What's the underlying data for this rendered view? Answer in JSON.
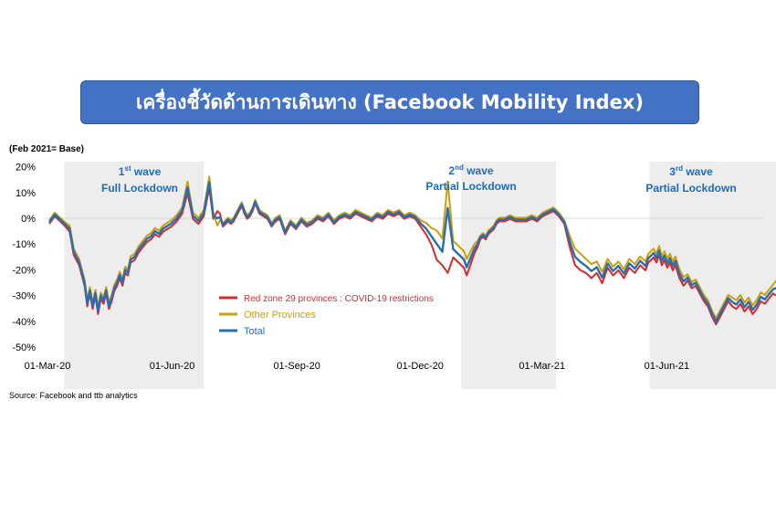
{
  "title": "เครื่องชี้วัดด้านการเดินทาง (Facebook Mobility Index)",
  "base_note": "(Feb 2021= Base)",
  "source": "Source: Facebook and ttb analytics",
  "colors": {
    "red": "#d42b2b",
    "other": "#c9a00f",
    "total": "#2a6db0",
    "shade": "#ededed",
    "wave_text": "#1f6bb5"
  },
  "waves": [
    {
      "ord": "1",
      "sup": "st",
      "word": " wave",
      "sub": "Full Lockdown"
    },
    {
      "ord": "2",
      "sup": "nd",
      "word": " wave",
      "sub": "Partial Lockdown"
    },
    {
      "ord": "3",
      "sup": "rd",
      "word": " wave",
      "sub": "Partial Lockdown"
    }
  ],
  "chart_data": {
    "type": "line",
    "x_ticks": [
      "01-Mar-20",
      "01-Jun-20",
      "01-Sep-20",
      "01-Dec-20",
      "01-Mar-21",
      "01-Jun-21"
    ],
    "y_ticks": [
      "20%",
      "10%",
      "0%",
      "-10%",
      "-20%",
      "-30%",
      "-40%",
      "-50%"
    ],
    "ylim": [
      -50,
      20
    ],
    "shaded_periods": [
      {
        "start_day": 11,
        "end_day": 114
      },
      {
        "start_day": 304,
        "end_day": 374
      },
      {
        "start_day": 443,
        "end_day": 570
      }
    ],
    "x_days": [
      0,
      4,
      8,
      12,
      15,
      18,
      22,
      26,
      28,
      30,
      32,
      34,
      36,
      38,
      40,
      42,
      44,
      46,
      48,
      50,
      52,
      54,
      56,
      58,
      60,
      63,
      66,
      69,
      72,
      75,
      78,
      81,
      84,
      87,
      90,
      94,
      98,
      102,
      106,
      110,
      114,
      118,
      121,
      124,
      126,
      128,
      130,
      132,
      134,
      136,
      138,
      140,
      142,
      144,
      146,
      148,
      150,
      152,
      155,
      158,
      161,
      164,
      167,
      170,
      174,
      178,
      182,
      186,
      190,
      194,
      198,
      202,
      206,
      210,
      214,
      218,
      222,
      226,
      230,
      234,
      238,
      242,
      246,
      250,
      254,
      258,
      262,
      266,
      270,
      274,
      278,
      282,
      286,
      290,
      294,
      298,
      302,
      306,
      308,
      310,
      312,
      314,
      316,
      318,
      320,
      322,
      324,
      326,
      328,
      330,
      332,
      336,
      340,
      344,
      348,
      352,
      356,
      360,
      364,
      368,
      372,
      376,
      380,
      384,
      388,
      392,
      396,
      400,
      404,
      408,
      412,
      416,
      420,
      424,
      428,
      432,
      436,
      440,
      442,
      444,
      446,
      448,
      450,
      452,
      454,
      456,
      458,
      460,
      462,
      465,
      468,
      471,
      474,
      477,
      480,
      483,
      486,
      489,
      492,
      495,
      498,
      501,
      504,
      507,
      510,
      513,
      516,
      519,
      522,
      525,
      528,
      531,
      534,
      537,
      540,
      543,
      546,
      549,
      552,
      555,
      558,
      561,
      564,
      567,
      570
    ],
    "series": [
      {
        "name": "Red zone  29 provinces : COVID-19  restrictions",
        "values": [
          -2,
          1,
          -1,
          -3,
          -5,
          -14,
          -18,
          -26,
          -34,
          -29,
          -35,
          -30,
          -37,
          -31,
          -33,
          -29,
          -35,
          -32,
          -28,
          -26,
          -23,
          -26,
          -21,
          -22,
          -17,
          -16,
          -13,
          -11,
          -9,
          -8,
          -6,
          -7,
          -5,
          -4,
          -3,
          -1,
          2,
          10,
          0,
          -2,
          1,
          12,
          0,
          3,
          2,
          -3,
          -2,
          -1,
          -2,
          -1,
          1,
          3,
          5,
          2,
          0,
          1,
          3,
          6,
          2,
          1,
          0,
          -3,
          -1,
          0,
          -6,
          -2,
          -4,
          -1,
          -3,
          -2,
          0,
          -1,
          1,
          -2,
          0,
          1,
          0,
          2,
          1,
          0,
          -1,
          1,
          0,
          2,
          1,
          2,
          0,
          1,
          0,
          -3,
          -6,
          -10,
          -16,
          -18,
          -21,
          -15,
          -17,
          -19,
          -22,
          -19,
          -16,
          -13,
          -11,
          -8,
          -7,
          -8,
          -6,
          -5,
          -4,
          -2,
          -1,
          -1,
          0,
          -1,
          -1,
          -1,
          0,
          -1,
          1,
          2,
          3,
          1,
          -2,
          -11,
          -18,
          -20,
          -21,
          -23,
          -21,
          -25,
          -19,
          -22,
          -20,
          -23,
          -19,
          -21,
          -18,
          -20,
          -17,
          -16,
          -15,
          -17,
          -14,
          -18,
          -16,
          -19,
          -17,
          -20,
          -18,
          -23,
          -26,
          -24,
          -27,
          -26,
          -29,
          -32,
          -34,
          -38,
          -41,
          -38,
          -35,
          -32,
          -34,
          -35,
          -33,
          -36,
          -34,
          -37,
          -35,
          -32,
          -33,
          -31,
          -29,
          -30,
          -32,
          -34
        ]
      },
      {
        "name": "Other Provinces",
        "values": [
          -1,
          2,
          0,
          -2,
          -3,
          -12,
          -16,
          -24,
          -32,
          -27,
          -33,
          -28,
          -35,
          -29,
          -31,
          -27,
          -33,
          -30,
          -26,
          -24,
          -21,
          -24,
          -19,
          -20,
          -15,
          -14,
          -11,
          -9,
          -7,
          -6,
          -4,
          -5,
          -3,
          -2,
          -1,
          1,
          4,
          14,
          2,
          0,
          3,
          16,
          2,
          -3,
          -1,
          -2,
          -1,
          0,
          -1,
          0,
          2,
          4,
          6,
          3,
          1,
          2,
          4,
          7,
          3,
          2,
          1,
          -2,
          0,
          1,
          -5,
          -1,
          -3,
          0,
          -2,
          -1,
          1,
          0,
          2,
          -1,
          1,
          2,
          1,
          3,
          2,
          1,
          0,
          2,
          1,
          3,
          2,
          3,
          1,
          2,
          1,
          -1,
          -2,
          -4,
          -5,
          -8,
          14,
          -9,
          -11,
          -13,
          -16,
          -14,
          -12,
          -10,
          -9,
          -7,
          -6,
          -7,
          -5,
          -4,
          -3,
          -1,
          0,
          0,
          1,
          0,
          0,
          0,
          1,
          0,
          2,
          3,
          4,
          2,
          -1,
          -7,
          -12,
          -14,
          -16,
          -18,
          -17,
          -21,
          -16,
          -19,
          -17,
          -20,
          -16,
          -18,
          -15,
          -17,
          -14,
          -13,
          -12,
          -14,
          -11,
          -15,
          -13,
          -16,
          -14,
          -17,
          -15,
          -20,
          -23,
          -22,
          -25,
          -24,
          -27,
          -30,
          -32,
          -36,
          -39,
          -36,
          -33,
          -30,
          -31,
          -32,
          -30,
          -33,
          -31,
          -34,
          -32,
          -29,
          -30,
          -28,
          -26,
          -24,
          -27,
          -28
        ]
      },
      {
        "name": "Total",
        "values": [
          -1.5,
          1.5,
          -0.5,
          -2.5,
          -4,
          -13,
          -17,
          -25,
          -33,
          -28,
          -34,
          -29,
          -36,
          -30,
          -32,
          -28,
          -34,
          -31,
          -27,
          -25,
          -22,
          -25,
          -20,
          -21,
          -16,
          -15,
          -12,
          -10,
          -8,
          -7,
          -5,
          -6,
          -4,
          -3,
          -2,
          0,
          3,
          12,
          1,
          -1,
          2,
          14,
          1,
          0,
          0.5,
          -2.5,
          -1.5,
          -0.5,
          -1.5,
          -0.5,
          1.5,
          3.5,
          5.5,
          2.5,
          0.5,
          1.5,
          3.5,
          6.5,
          2.5,
          1.5,
          0.5,
          -2.5,
          -0.5,
          0.5,
          -5.5,
          -1.5,
          -3.5,
          -0.5,
          -2.5,
          -1.5,
          0.5,
          -0.5,
          1.5,
          -1.5,
          0.5,
          1.5,
          0.5,
          2.5,
          1.5,
          0.5,
          -0.5,
          1.5,
          0.5,
          2.5,
          1.5,
          2.5,
          0.5,
          1.5,
          0.5,
          -2,
          -4,
          -7,
          -10,
          -13,
          4,
          -12,
          -14,
          -16,
          -19,
          -16.5,
          -14,
          -11.5,
          -10,
          -7.5,
          -6.5,
          -7.5,
          -5.5,
          -4.5,
          -3.5,
          -1.5,
          -0.5,
          -0.5,
          0.5,
          -0.5,
          -0.5,
          -0.5,
          0.5,
          -0.5,
          1.5,
          2.5,
          3.5,
          1.5,
          -1.5,
          -9,
          -15,
          -17,
          -18.5,
          -20.5,
          -19,
          -23,
          -17.5,
          -20.5,
          -18.5,
          -21.5,
          -17.5,
          -19.5,
          -16.5,
          -18.5,
          -15.5,
          -14.5,
          -13.5,
          -15.5,
          -12.5,
          -16.5,
          -14.5,
          -17.5,
          -15.5,
          -18.5,
          -16.5,
          -21.5,
          -24.5,
          -23,
          -26,
          -25,
          -28,
          -31,
          -33,
          -37,
          -40,
          -37,
          -34,
          -31,
          -32.5,
          -33.5,
          -31.5,
          -34.5,
          -32.5,
          -35.5,
          -33.5,
          -30.5,
          -31.5,
          -29.5,
          -27.5,
          -27,
          -29.5,
          -31
        ]
      }
    ]
  }
}
